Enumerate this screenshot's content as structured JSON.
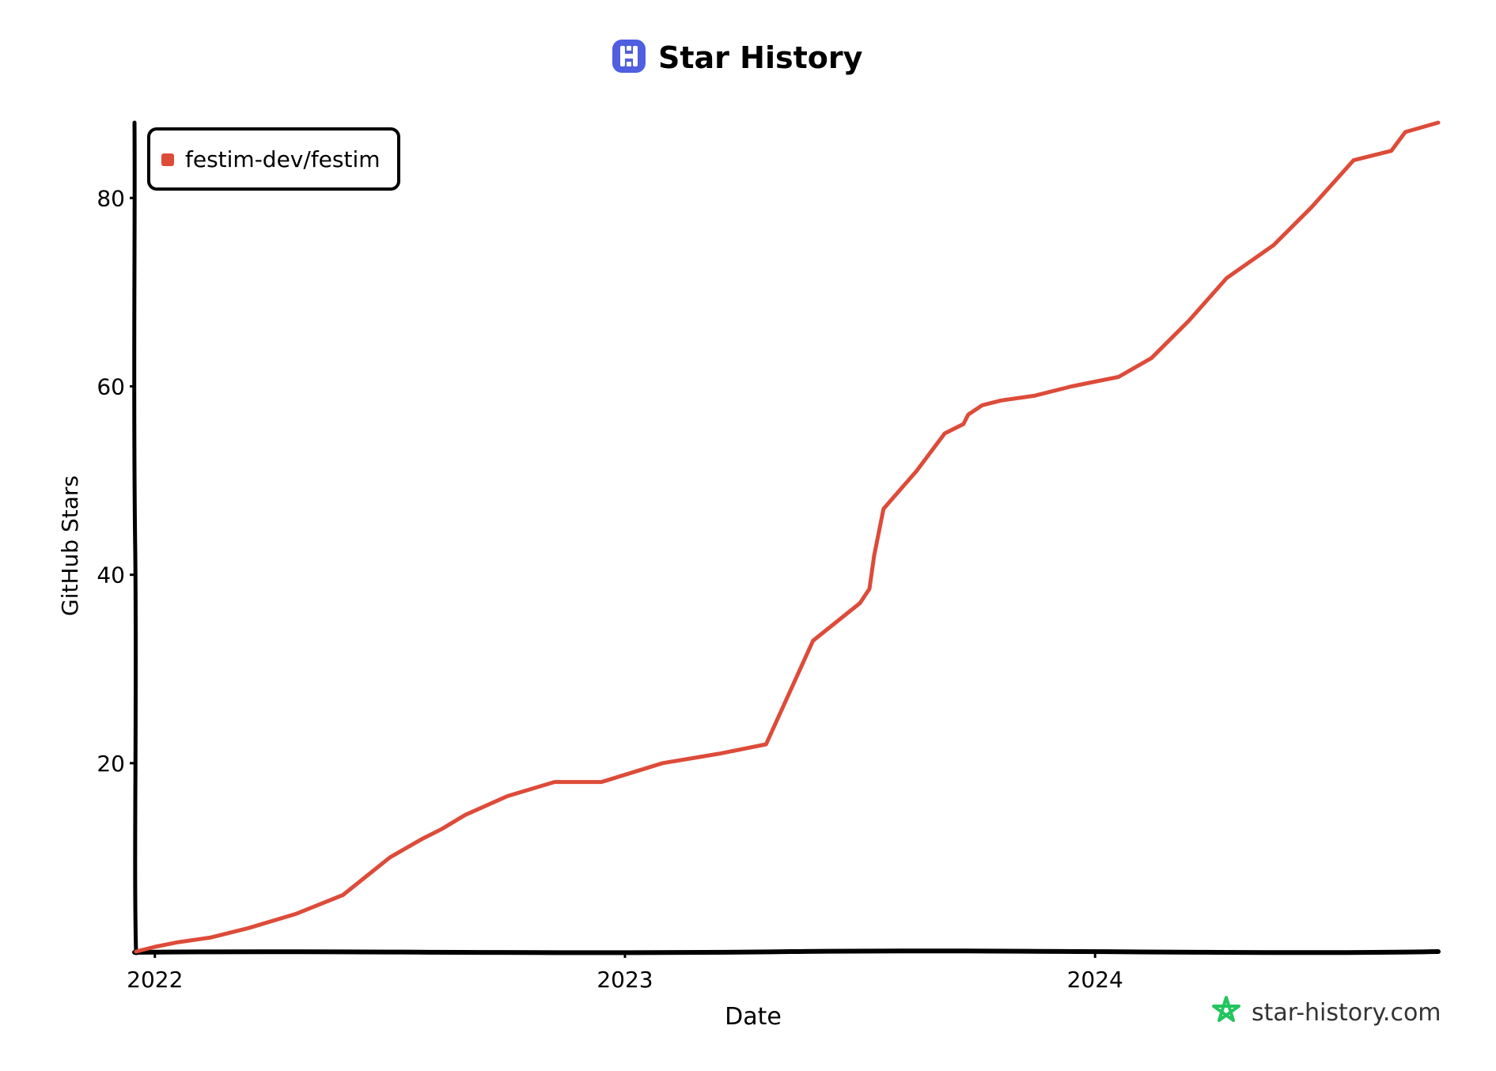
{
  "header": {
    "title": "Star History",
    "logo_icon": "star-history-logo-icon"
  },
  "watermark": {
    "text": "star-history.com",
    "icon": "star-outline-icon",
    "color": "#22c55e"
  },
  "chart_data": {
    "type": "line",
    "title": "Star History",
    "xlabel": "Date",
    "ylabel": "GitHub Stars",
    "x_ticks": [
      "2022",
      "2023",
      "2024"
    ],
    "y_ticks": [
      20,
      40,
      60,
      80
    ],
    "xlim": [
      2021.96,
      2024.73
    ],
    "ylim": [
      0,
      88
    ],
    "grid": false,
    "legend_position": "top-left",
    "series": [
      {
        "name": "festim-dev/festim",
        "color": "#dd4b39",
        "x": [
          2021.96,
          2022.0,
          2022.05,
          2022.12,
          2022.2,
          2022.3,
          2022.4,
          2022.5,
          2022.57,
          2022.61,
          2022.66,
          2022.75,
          2022.85,
          2022.95,
          2023.08,
          2023.2,
          2023.3,
          2023.4,
          2023.5,
          2023.52,
          2023.53,
          2023.55,
          2023.62,
          2023.68,
          2023.72,
          2023.73,
          2023.76,
          2023.8,
          2023.87,
          2023.95,
          2024.05,
          2024.12,
          2024.2,
          2024.28,
          2024.38,
          2024.46,
          2024.55,
          2024.63,
          2024.66,
          2024.73
        ],
        "values": [
          0,
          0.5,
          1,
          1.5,
          2.5,
          4,
          6,
          10,
          12,
          13,
          14.5,
          16.5,
          18,
          18,
          20,
          21,
          22,
          33,
          37,
          38.5,
          42,
          47,
          51,
          55,
          56,
          57,
          58,
          58.5,
          59,
          60,
          61,
          63,
          67,
          71.5,
          75,
          79,
          84,
          85,
          87,
          88
        ]
      }
    ]
  }
}
